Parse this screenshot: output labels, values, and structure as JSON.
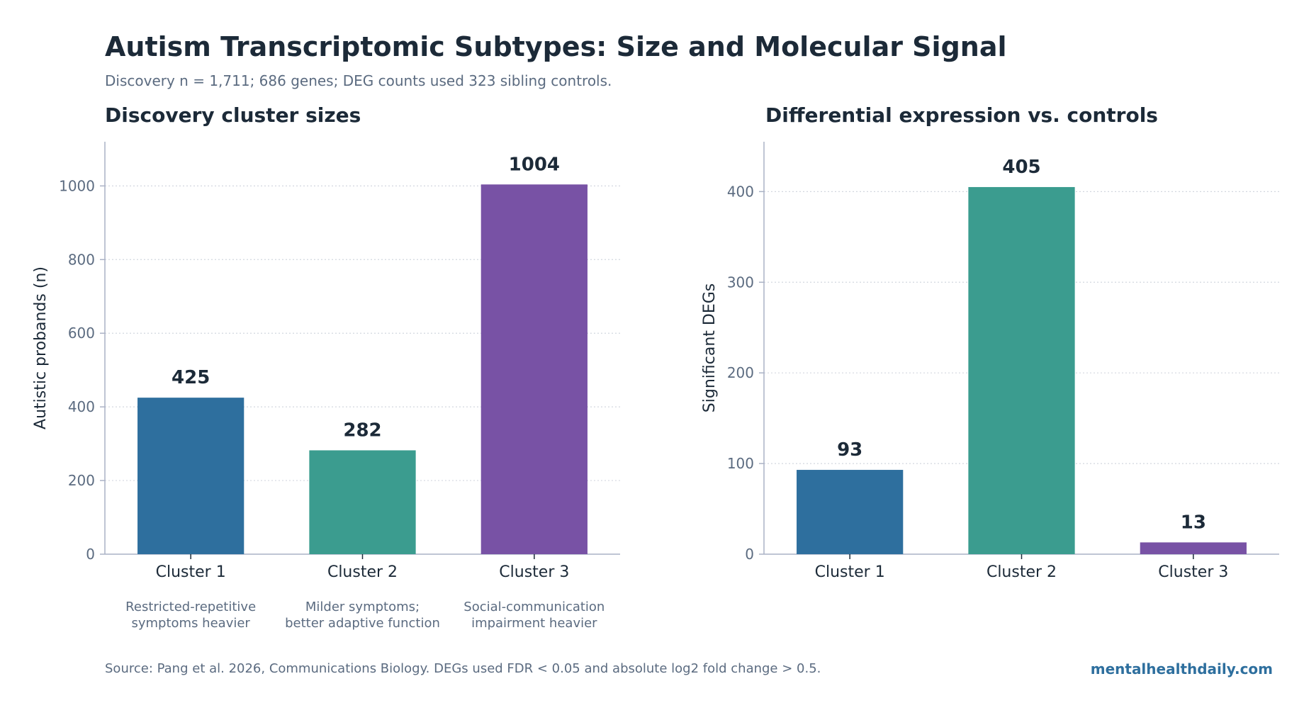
{
  "header": {
    "title": "Autism Transcriptomic Subtypes: Size and Molecular Signal",
    "subtitle": "Discovery n = 1,711; 686 genes; DEG counts used 323 sibling controls."
  },
  "colors": {
    "cluster1": "#2e6f9e",
    "cluster2": "#3b9c8f",
    "cluster3": "#7852a5",
    "axis": "#aab2c5",
    "grid": "#d3d7df",
    "tick_text": "#5b6b80",
    "label_text": "#1c2a38"
  },
  "chart_data": [
    {
      "type": "bar",
      "title": "Discovery cluster sizes",
      "xlabel": "",
      "ylabel": "Autistic probands (n)",
      "categories": [
        "Cluster 1",
        "Cluster 2",
        "Cluster 3"
      ],
      "category_notes": [
        [
          "Restricted-repetitive",
          "symptoms heavier"
        ],
        [
          "Milder symptoms;",
          "better adaptive function"
        ],
        [
          "Social-communication",
          "impairment heavier"
        ]
      ],
      "values": [
        425,
        282,
        1004
      ],
      "data_labels": [
        "425",
        "282",
        "1004"
      ],
      "ylim": [
        0,
        1120
      ],
      "yticks": [
        0,
        200,
        400,
        600,
        800,
        1000
      ],
      "grid": true
    },
    {
      "type": "bar",
      "title": "Differential expression vs. controls",
      "xlabel": "",
      "ylabel": "Significant DEGs",
      "categories": [
        "Cluster 1",
        "Cluster 2",
        "Cluster 3"
      ],
      "values": [
        93,
        405,
        13
      ],
      "data_labels": [
        "93",
        "405",
        "13"
      ],
      "ylim": [
        0,
        455
      ],
      "yticks": [
        0,
        100,
        200,
        300,
        400
      ],
      "grid": true
    }
  ],
  "footer": {
    "source": "Source: Pang et al. 2026, Communications Biology. DEGs used FDR < 0.05 and absolute log2 fold change > 0.5.",
    "brand": "mentalhealthdaily.com"
  }
}
